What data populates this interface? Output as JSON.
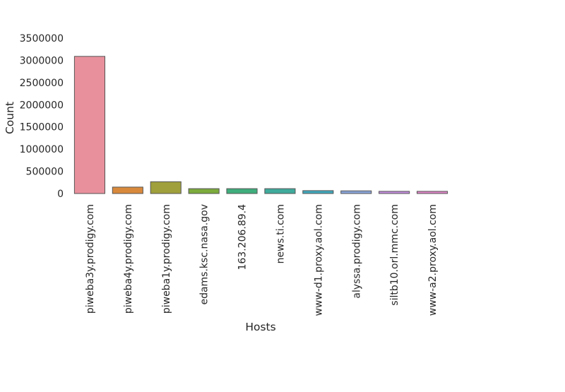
{
  "chart_data": {
    "type": "bar",
    "title": "",
    "xlabel": "Hosts",
    "ylabel": "Count",
    "categories": [
      "piweba3y.prodigy.com",
      "piweba4y.prodigy.com",
      "piweba1y.prodigy.com",
      "edams.ksc.nasa.gov",
      "163.206.89.4",
      "news.ti.com",
      "www-d1.proxy.aol.com",
      "alyssa.prodigy.com",
      "siltb10.orl.mmc.com",
      "www-a2.proxy.aol.com"
    ],
    "values": [
      3090000,
      145000,
      265000,
      110000,
      110000,
      110000,
      65000,
      60000,
      50000,
      50000
    ],
    "colors": [
      "#e8909c",
      "#d9893c",
      "#a0a03c",
      "#7cab3c",
      "#3fae7c",
      "#3fab9c",
      "#3fa8bc",
      "#8aa4d8",
      "#c58ee0",
      "#de86c8"
    ],
    "ylim": [
      0,
      3500000
    ],
    "yticks": [
      0,
      500000,
      1000000,
      1500000,
      2000000,
      2500000,
      3000000,
      3500000
    ],
    "grid": false,
    "legend": "none"
  }
}
